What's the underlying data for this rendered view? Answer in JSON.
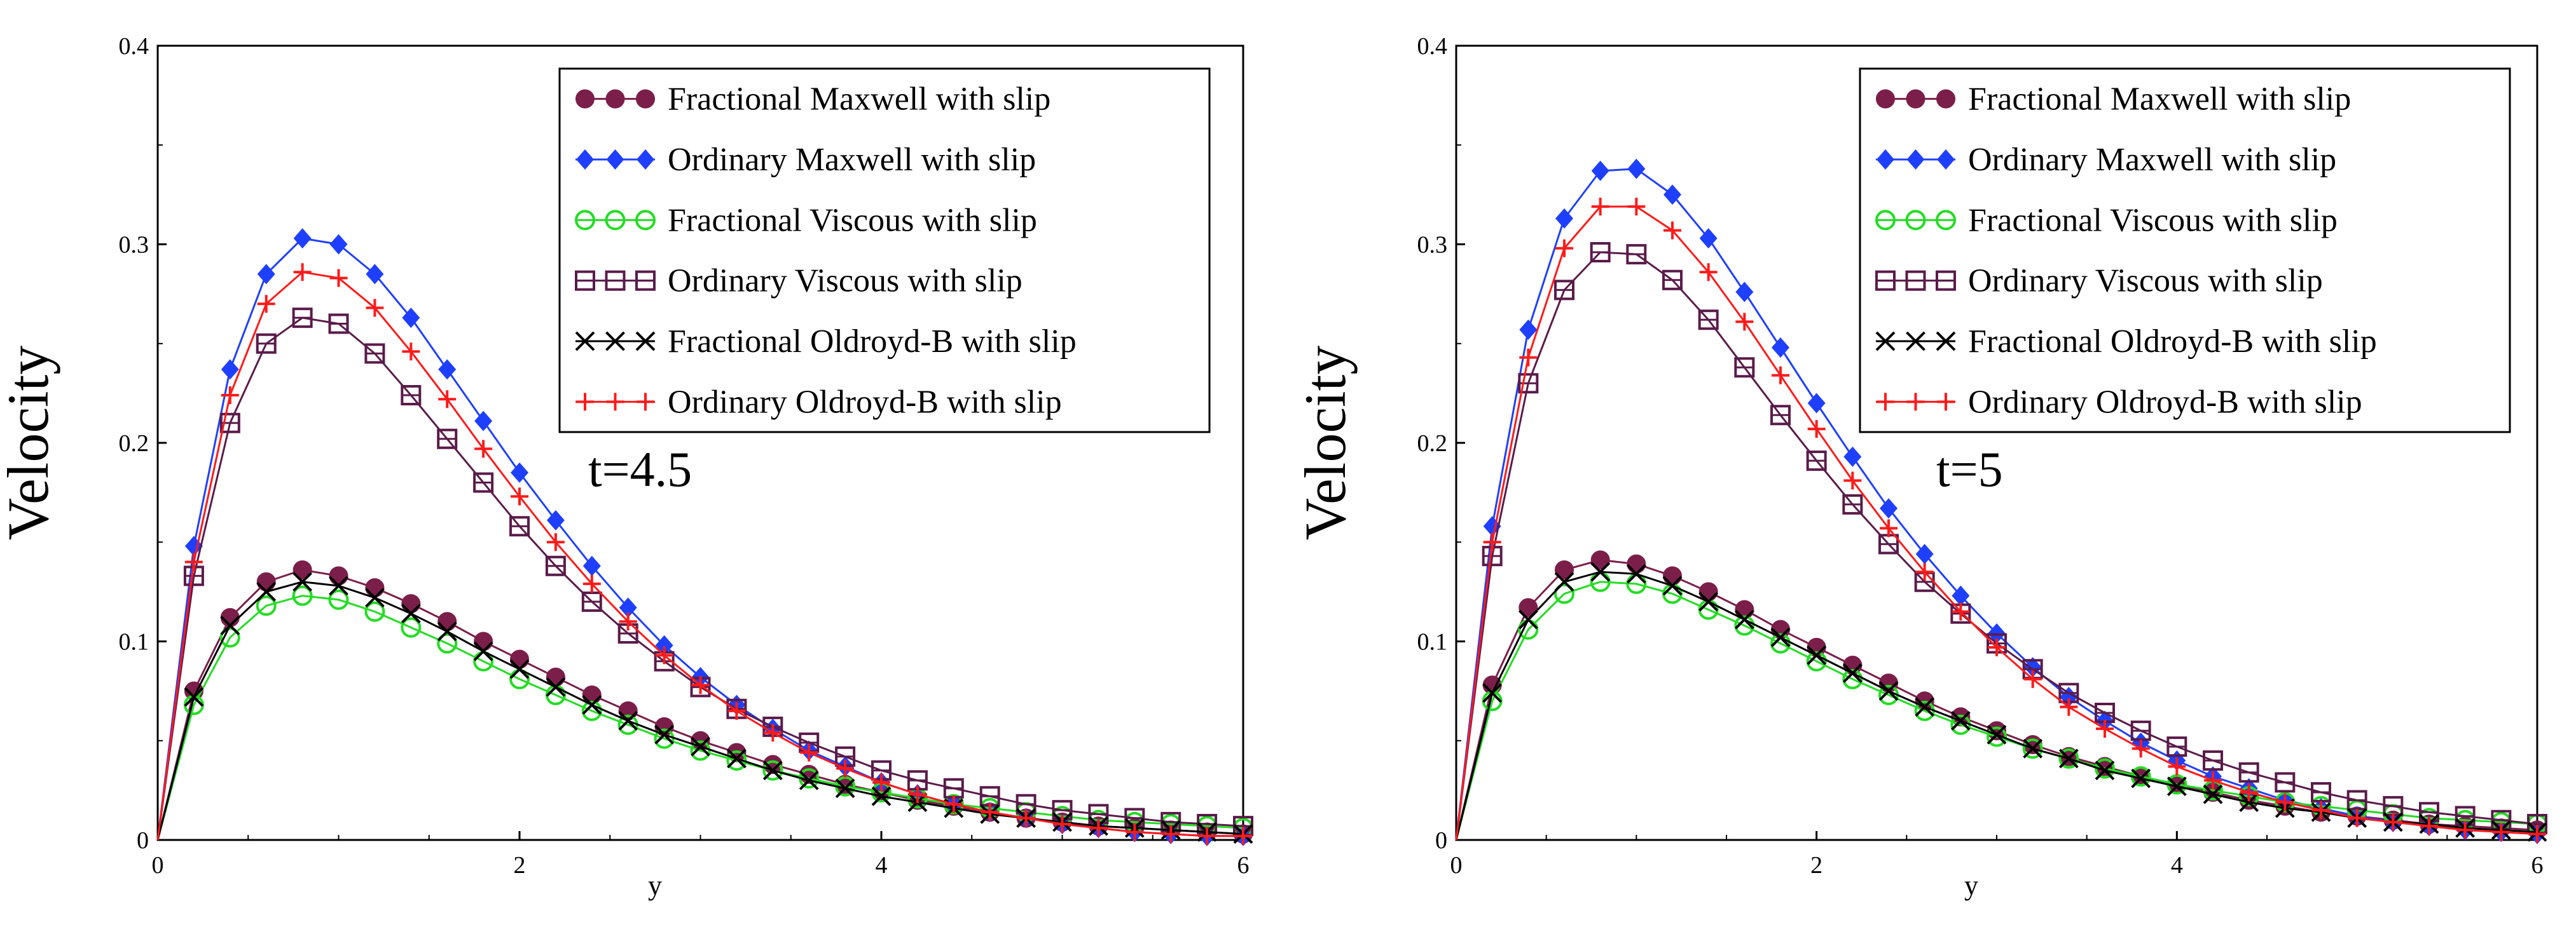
{
  "chart_data": [
    {
      "type": "line",
      "ylabel": "Velocity",
      "xlabel": "y",
      "annotation": "t=4.5",
      "xlim": [
        0,
        6
      ],
      "ylim": [
        0,
        0.4
      ],
      "xticks": [
        "0",
        "2",
        "4",
        "6"
      ],
      "yticks": [
        "0",
        "0.1",
        "0.2",
        "0.3",
        "0.4"
      ],
      "legend_position": "top-right",
      "x": [
        0,
        0.2,
        0.4,
        0.6,
        0.8,
        1.0,
        1.2,
        1.4,
        1.6,
        1.8,
        2.0,
        2.2,
        2.4,
        2.6,
        2.8,
        3.0,
        3.2,
        3.4,
        3.6,
        3.8,
        4.0,
        4.2,
        4.4,
        4.6,
        4.8,
        5.0,
        5.2,
        5.4,
        5.6,
        5.8,
        6.0
      ],
      "series": [
        {
          "name": "Fractional Maxwell with slip",
          "color": "#7b1f4a",
          "marker": "filled-circle",
          "values": [
            0.0,
            0.075,
            0.112,
            0.13,
            0.136,
            0.133,
            0.127,
            0.119,
            0.11,
            0.1,
            0.091,
            0.082,
            0.073,
            0.065,
            0.057,
            0.05,
            0.044,
            0.038,
            0.033,
            0.028,
            0.024,
            0.02,
            0.017,
            0.014,
            0.011,
            0.009,
            0.007,
            0.006,
            0.005,
            0.004,
            0.003
          ]
        },
        {
          "name": "Ordinary Maxwell with slip",
          "color": "#1f3fff",
          "marker": "filled-diamond",
          "values": [
            0.0,
            0.148,
            0.237,
            0.285,
            0.303,
            0.3,
            0.285,
            0.263,
            0.237,
            0.211,
            0.185,
            0.161,
            0.138,
            0.117,
            0.098,
            0.082,
            0.068,
            0.056,
            0.045,
            0.037,
            0.029,
            0.023,
            0.018,
            0.014,
            0.011,
            0.008,
            0.006,
            0.004,
            0.003,
            0.002,
            0.002
          ]
        },
        {
          "name": "Fractional Viscous with slip",
          "color": "#22dd22",
          "marker": "open-circle",
          "values": [
            0.0,
            0.068,
            0.102,
            0.118,
            0.123,
            0.121,
            0.115,
            0.107,
            0.099,
            0.09,
            0.081,
            0.073,
            0.065,
            0.058,
            0.051,
            0.045,
            0.04,
            0.035,
            0.031,
            0.027,
            0.024,
            0.021,
            0.018,
            0.016,
            0.014,
            0.012,
            0.01,
            0.009,
            0.008,
            0.007,
            0.006
          ]
        },
        {
          "name": "Ordinary Viscous with slip",
          "color": "#5a1b4a",
          "marker": "open-square",
          "values": [
            0.0,
            0.133,
            0.21,
            0.25,
            0.263,
            0.26,
            0.245,
            0.224,
            0.202,
            0.18,
            0.158,
            0.138,
            0.12,
            0.104,
            0.09,
            0.077,
            0.066,
            0.057,
            0.049,
            0.042,
            0.035,
            0.03,
            0.026,
            0.022,
            0.018,
            0.015,
            0.013,
            0.011,
            0.009,
            0.008,
            0.007
          ]
        },
        {
          "name": "Fractional Oldroyd-B with slip",
          "color": "#000000",
          "marker": "x",
          "values": [
            0.0,
            0.072,
            0.108,
            0.125,
            0.13,
            0.128,
            0.122,
            0.114,
            0.105,
            0.095,
            0.086,
            0.077,
            0.068,
            0.06,
            0.053,
            0.047,
            0.041,
            0.035,
            0.03,
            0.026,
            0.022,
            0.019,
            0.016,
            0.013,
            0.011,
            0.009,
            0.007,
            0.006,
            0.005,
            0.004,
            0.003
          ]
        },
        {
          "name": "Ordinary Oldroyd-B with slip",
          "color": "#ff1a1a",
          "marker": "plus",
          "values": [
            0.0,
            0.14,
            0.224,
            0.27,
            0.286,
            0.283,
            0.268,
            0.246,
            0.222,
            0.197,
            0.173,
            0.15,
            0.129,
            0.11,
            0.093,
            0.078,
            0.065,
            0.054,
            0.044,
            0.036,
            0.029,
            0.023,
            0.018,
            0.014,
            0.011,
            0.008,
            0.006,
            0.004,
            0.003,
            0.002,
            0.002
          ]
        }
      ]
    },
    {
      "type": "line",
      "ylabel": "Velocity",
      "xlabel": "y",
      "annotation": "t=5",
      "xlim": [
        0,
        6
      ],
      "ylim": [
        0,
        0.4
      ],
      "xticks": [
        "0",
        "2",
        "4",
        "6"
      ],
      "yticks": [
        "0",
        "0.1",
        "0.2",
        "0.3",
        "0.4"
      ],
      "legend_position": "top-right",
      "x": [
        0,
        0.2,
        0.4,
        0.6,
        0.8,
        1.0,
        1.2,
        1.4,
        1.6,
        1.8,
        2.0,
        2.2,
        2.4,
        2.6,
        2.8,
        3.0,
        3.2,
        3.4,
        3.6,
        3.8,
        4.0,
        4.2,
        4.4,
        4.6,
        4.8,
        5.0,
        5.2,
        5.4,
        5.6,
        5.8,
        6.0
      ],
      "series": [
        {
          "name": "Fractional Maxwell with slip",
          "color": "#7b1f4a",
          "marker": "filled-circle",
          "values": [
            0.0,
            0.078,
            0.117,
            0.136,
            0.141,
            0.139,
            0.133,
            0.125,
            0.116,
            0.106,
            0.097,
            0.088,
            0.079,
            0.07,
            0.062,
            0.055,
            0.048,
            0.042,
            0.037,
            0.032,
            0.028,
            0.024,
            0.02,
            0.017,
            0.014,
            0.012,
            0.01,
            0.008,
            0.007,
            0.006,
            0.005
          ]
        },
        {
          "name": "Ordinary Maxwell with slip",
          "color": "#1f3fff",
          "marker": "filled-diamond",
          "values": [
            0.0,
            0.158,
            0.257,
            0.313,
            0.337,
            0.338,
            0.325,
            0.303,
            0.276,
            0.248,
            0.22,
            0.193,
            0.167,
            0.144,
            0.123,
            0.104,
            0.087,
            0.072,
            0.06,
            0.049,
            0.04,
            0.032,
            0.026,
            0.02,
            0.016,
            0.012,
            0.009,
            0.007,
            0.005,
            0.004,
            0.003
          ]
        },
        {
          "name": "Fractional Viscous with slip",
          "color": "#22dd22",
          "marker": "open-circle",
          "values": [
            0.0,
            0.07,
            0.106,
            0.124,
            0.13,
            0.129,
            0.124,
            0.116,
            0.108,
            0.099,
            0.09,
            0.081,
            0.073,
            0.065,
            0.058,
            0.052,
            0.046,
            0.041,
            0.036,
            0.032,
            0.028,
            0.025,
            0.022,
            0.019,
            0.017,
            0.015,
            0.013,
            0.011,
            0.01,
            0.009,
            0.008
          ]
        },
        {
          "name": "Ordinary Viscous with slip",
          "color": "#5a1b4a",
          "marker": "open-square",
          "values": [
            0.0,
            0.143,
            0.23,
            0.277,
            0.296,
            0.295,
            0.282,
            0.262,
            0.238,
            0.214,
            0.191,
            0.169,
            0.149,
            0.13,
            0.114,
            0.099,
            0.086,
            0.074,
            0.064,
            0.055,
            0.047,
            0.04,
            0.034,
            0.029,
            0.024,
            0.02,
            0.017,
            0.014,
            0.012,
            0.01,
            0.008
          ]
        },
        {
          "name": "Fractional Oldroyd-B with slip",
          "color": "#000000",
          "marker": "x",
          "values": [
            0.0,
            0.074,
            0.111,
            0.13,
            0.135,
            0.134,
            0.128,
            0.12,
            0.111,
            0.102,
            0.093,
            0.084,
            0.075,
            0.067,
            0.06,
            0.053,
            0.046,
            0.041,
            0.035,
            0.031,
            0.027,
            0.023,
            0.019,
            0.016,
            0.014,
            0.011,
            0.009,
            0.008,
            0.006,
            0.005,
            0.004
          ]
        },
        {
          "name": "Ordinary Oldroyd-B with slip",
          "color": "#ff1a1a",
          "marker": "plus",
          "values": [
            0.0,
            0.15,
            0.243,
            0.298,
            0.319,
            0.319,
            0.307,
            0.286,
            0.261,
            0.234,
            0.207,
            0.181,
            0.157,
            0.135,
            0.115,
            0.097,
            0.081,
            0.067,
            0.056,
            0.046,
            0.037,
            0.03,
            0.024,
            0.019,
            0.015,
            0.011,
            0.009,
            0.007,
            0.005,
            0.004,
            0.003
          ]
        }
      ]
    }
  ]
}
